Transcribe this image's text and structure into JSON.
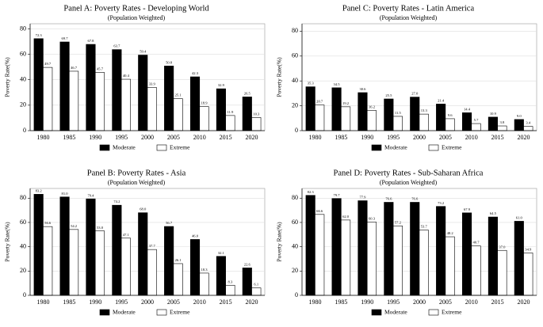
{
  "chart_data": [
    {
      "type": "bar",
      "title": "Panel A: Poverty Rates - Developing World",
      "subtitle": "(Population Weighted)",
      "ylabel": "Poverty Rate(%)",
      "categories": [
        "1980",
        "1985",
        "1990",
        "1995",
        "2000",
        "2005",
        "2010",
        "2015",
        "2020"
      ],
      "series": [
        {
          "name": "Moderate",
          "color": "#000000",
          "values": [
            72.3,
            69.7,
            67.8,
            63.7,
            59.4,
            50.8,
            42.3,
            32.9,
            26.5
          ],
          "value_labels": [
            "72.3",
            "69.7",
            "67.8",
            "63.7",
            "59.4",
            "50.8",
            "42.3",
            "32.9",
            "26.5"
          ]
        },
        {
          "name": "Extreme",
          "color": "#ffffff",
          "values": [
            49.7,
            46.7,
            45.7,
            40.4,
            33.9,
            25.1,
            18.9,
            11.9,
            10.3
          ],
          "value_labels": [
            "49.7",
            "46.7",
            "45.7",
            "40.4",
            "33.9",
            "25.1",
            "18.9",
            "11.9",
            "10.3"
          ]
        }
      ],
      "ylim": [
        0,
        84
      ],
      "yticks": [
        0,
        20,
        40,
        60,
        80
      ],
      "grid": true,
      "legend": "bottom"
    },
    {
      "type": "bar",
      "title": "Panel B: Poverty Rates - Asia",
      "subtitle": "(Population Weighted)",
      "ylabel": "Poverty Rate(%)",
      "categories": [
        "1980",
        "1985",
        "1990",
        "1995",
        "2000",
        "2005",
        "2010",
        "2015",
        "2020"
      ],
      "series": [
        {
          "name": "Moderate",
          "color": "#000000",
          "values": [
            83.2,
            81.0,
            79.4,
            74.2,
            68.0,
            56.7,
            46.0,
            32.1,
            22.6
          ],
          "value_labels": [
            "83.2",
            "81.0",
            "79.4",
            "74.2",
            "68.0",
            "56.7",
            "46.0",
            "32.1",
            "22.6"
          ]
        },
        {
          "name": "Extreme",
          "color": "#ffffff",
          "values": [
            56.6,
            54.2,
            53.0,
            47.1,
            37.7,
            26.1,
            18.3,
            8.3,
            6.1
          ],
          "value_labels": [
            "56.6",
            "54.2",
            "53.0",
            "47.1",
            "37.7",
            "26.1",
            "18.3",
            "8.3",
            "6.1"
          ]
        }
      ],
      "ylim": [
        0,
        88
      ],
      "yticks": [
        0,
        20,
        40,
        60,
        80
      ],
      "grid": true,
      "legend": "bottom"
    },
    {
      "type": "bar",
      "title": "Panel C: Poverty Rates - Latin America",
      "subtitle": "(Population Weighted)",
      "ylabel": "Poverty Rate(%)",
      "categories": [
        "1980",
        "1985",
        "1990",
        "1995",
        "2000",
        "2005",
        "2010",
        "2015",
        "2020"
      ],
      "series": [
        {
          "name": "Moderate",
          "color": "#000000",
          "values": [
            35.3,
            34.5,
            30.6,
            25.5,
            27.0,
            21.4,
            14.4,
            10.9,
            9.0
          ],
          "value_labels": [
            "35.3",
            "34.5",
            "30.6",
            "25.5",
            "27.0",
            "21.4",
            "14.4",
            "10.9",
            "9.0"
          ]
        },
        {
          "name": "Extreme",
          "color": "#ffffff",
          "values": [
            20.7,
            19.2,
            16.2,
            11.5,
            13.3,
            9.6,
            5.7,
            3.8,
            3.4
          ],
          "value_labels": [
            "20.7",
            "19.2",
            "16.2",
            "11.5",
            "13.3",
            "9.6",
            "5.7",
            "3.8",
            "3.4"
          ]
        }
      ],
      "ylim": [
        0,
        86
      ],
      "yticks": [
        0,
        20,
        40,
        60,
        80
      ],
      "grid": true,
      "legend": "bottom"
    },
    {
      "type": "bar",
      "title": "Panel D: Poverty Rates - Sub-Saharan Africa",
      "subtitle": "(Population Weighted)",
      "ylabel": "Poverty Rate(%)",
      "categories": [
        "1980",
        "1985",
        "1990",
        "1995",
        "2000",
        "2005",
        "2010",
        "2015",
        "2020"
      ],
      "series": [
        {
          "name": "Moderate",
          "color": "#000000",
          "values": [
            82.3,
            79.7,
            77.9,
            76.6,
            76.6,
            73.2,
            67.9,
            64.5,
            61.0
          ],
          "value_labels": [
            "82.3",
            "79.7",
            "77.9",
            "76.6",
            "76.6",
            "73.2",
            "67.9",
            "64.5",
            "61.0"
          ]
        },
        {
          "name": "Extreme",
          "color": "#ffffff",
          "values": [
            66.6,
            62.0,
            60.3,
            57.2,
            53.7,
            48.2,
            40.7,
            37.0,
            34.9
          ],
          "value_labels": [
            "66.6",
            "62.0",
            "60.3",
            "57.2",
            "53.7",
            "48.2",
            "40.7",
            "37.0",
            "34.9"
          ]
        }
      ],
      "ylim": [
        0,
        88
      ],
      "yticks": [
        0,
        20,
        40,
        60,
        80
      ],
      "grid": true,
      "legend": "bottom"
    }
  ]
}
